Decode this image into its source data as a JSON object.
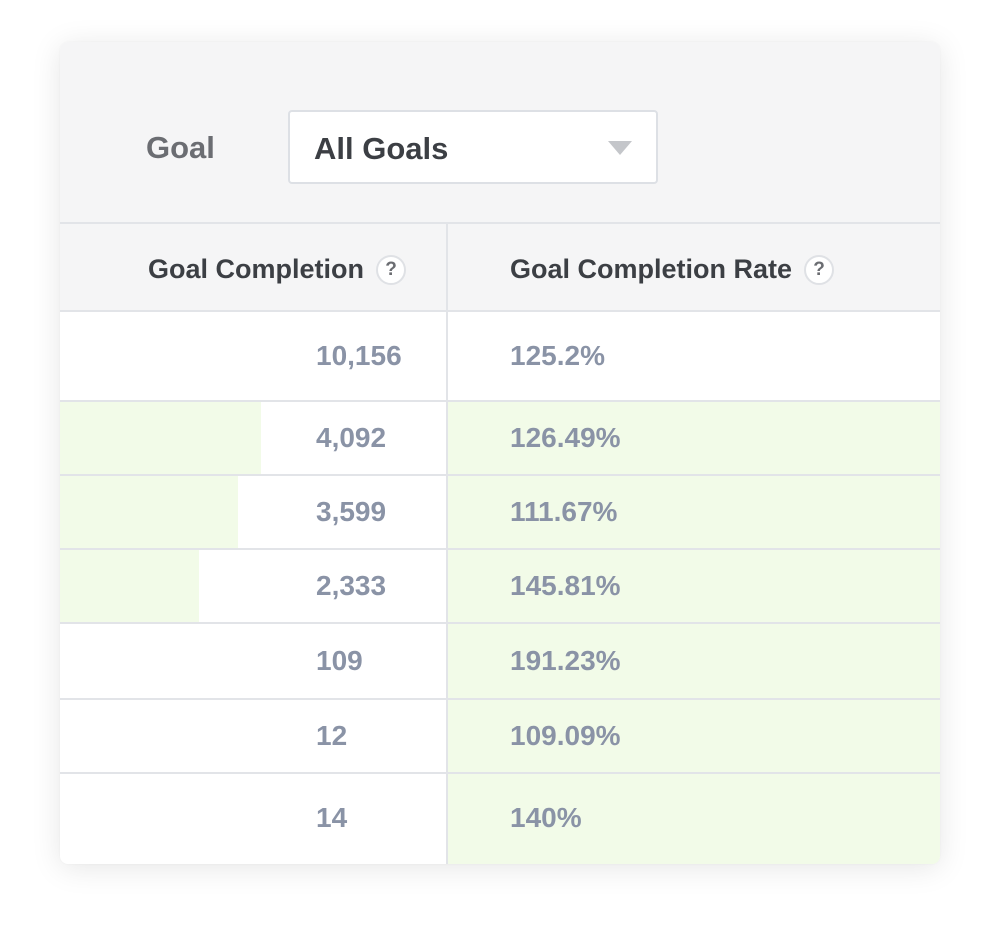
{
  "filter": {
    "label": "Goal",
    "selected": "All Goals",
    "caret_icon": "chevron-down-icon"
  },
  "table": {
    "columns": [
      {
        "label": "Goal Completion",
        "help_icon": "?"
      },
      {
        "label": "Goal Completion Rate",
        "help_icon": "?"
      }
    ],
    "rows": [
      {
        "count": "10,156",
        "rate": "125.2%",
        "count_bar_fraction": 0,
        "rate_highlight": false
      },
      {
        "count": "4,092",
        "rate": "126.49%",
        "count_bar_fraction": 0.52,
        "rate_highlight": true
      },
      {
        "count": "3,599",
        "rate": "111.67%",
        "count_bar_fraction": 0.46,
        "rate_highlight": true
      },
      {
        "count": "2,333",
        "rate": "145.81%",
        "count_bar_fraction": 0.36,
        "rate_highlight": true
      },
      {
        "count": "109",
        "rate": "191.23%",
        "count_bar_fraction": 0,
        "rate_highlight": true
      },
      {
        "count": "12",
        "rate": "109.09%",
        "count_bar_fraction": 0,
        "rate_highlight": true
      },
      {
        "count": "14",
        "rate": "140%",
        "count_bar_fraction": 0,
        "rate_highlight": true
      }
    ]
  },
  "colors": {
    "highlight": "#f2fbe8",
    "value_text": "#8a93a6",
    "header_bg": "#f5f5f6"
  }
}
